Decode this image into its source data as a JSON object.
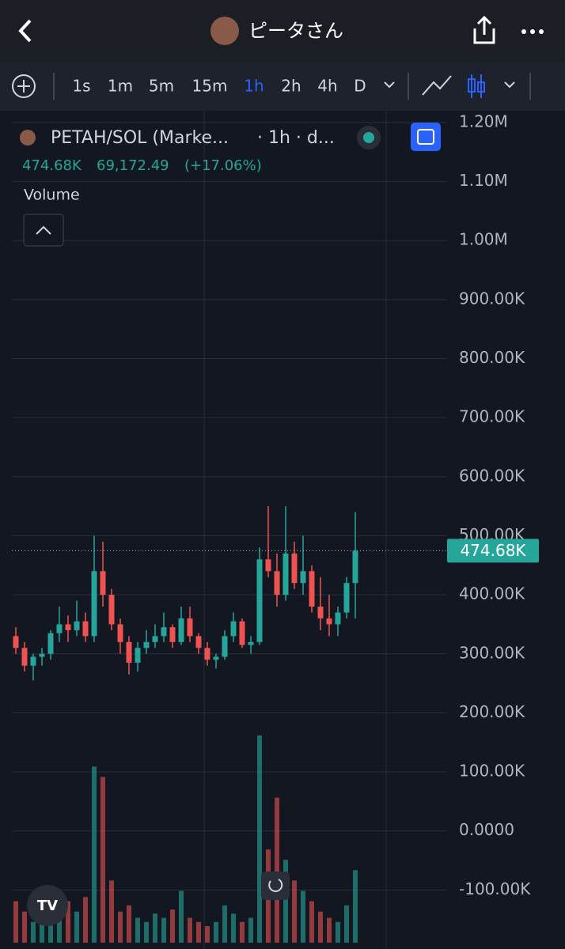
{
  "header": {
    "title": "ピータさん"
  },
  "toolbar": {
    "intervals": [
      "1s",
      "1m",
      "5m",
      "15m",
      "1h",
      "2h",
      "4h",
      "D"
    ],
    "active": 4
  },
  "chart_data": {
    "type": "candlestick",
    "title": "PETAH/SOL (Marke...",
    "subtitle": "· 1h · d...",
    "legend": {
      "price": "474.68K",
      "change": "69,172.49",
      "change_pct": "(+17.06%)"
    },
    "last_label": "474.68K",
    "up_color": "#26a69a",
    "down_color": "#ef5350",
    "ylim": [
      -200000,
      1220000
    ],
    "yticks": [
      {
        "value": 1200000,
        "label": "1.20M"
      },
      {
        "value": 1100000,
        "label": "1.10M"
      },
      {
        "value": 1000000,
        "label": "1.00M"
      },
      {
        "value": 900000,
        "label": "900.00K"
      },
      {
        "value": 800000,
        "label": "800.00K"
      },
      {
        "value": 700000,
        "label": "700.00K"
      },
      {
        "value": 600000,
        "label": "600.00K"
      },
      {
        "value": 500000,
        "label": "500.00K"
      },
      {
        "value": 400000,
        "label": "400.00K"
      },
      {
        "value": 300000,
        "label": "300.00K"
      },
      {
        "value": 200000,
        "label": "200.00K"
      },
      {
        "value": 100000,
        "label": "100.00K"
      },
      {
        "value": 0,
        "label": "0.0000"
      },
      {
        "value": -100000,
        "label": "-100.00K"
      }
    ],
    "series": [
      {
        "name": "PETAH/SOL",
        "open": [
          330000,
          310000,
          280000,
          295000,
          300000,
          335000,
          350000,
          340000,
          355000,
          330000,
          440000,
          400000,
          350000,
          320000,
          285000,
          310000,
          320000,
          330000,
          345000,
          320000,
          360000,
          330000,
          310000,
          290000,
          295000,
          330000,
          355000,
          315000,
          320000,
          460000,
          440000,
          400000,
          470000,
          420000,
          440000,
          380000,
          360000,
          350000,
          370000,
          420000
        ],
        "high": [
          345000,
          320000,
          300000,
          310000,
          340000,
          380000,
          365000,
          390000,
          370000,
          500000,
          490000,
          410000,
          360000,
          330000,
          320000,
          340000,
          350000,
          370000,
          350000,
          380000,
          380000,
          335000,
          320000,
          300000,
          340000,
          370000,
          360000,
          330000,
          480000,
          550000,
          470000,
          550000,
          490000,
          500000,
          450000,
          430000,
          400000,
          380000,
          430000,
          540000
        ],
        "low": [
          300000,
          270000,
          255000,
          280000,
          290000,
          320000,
          320000,
          330000,
          320000,
          320000,
          380000,
          340000,
          300000,
          265000,
          270000,
          300000,
          310000,
          320000,
          310000,
          315000,
          320000,
          300000,
          280000,
          275000,
          290000,
          320000,
          310000,
          300000,
          315000,
          430000,
          380000,
          390000,
          410000,
          400000,
          370000,
          340000,
          330000,
          330000,
          360000,
          360000
        ],
        "close": [
          310000,
          280000,
          295000,
          300000,
          335000,
          350000,
          340000,
          355000,
          330000,
          440000,
          400000,
          350000,
          320000,
          285000,
          310000,
          320000,
          330000,
          345000,
          320000,
          360000,
          330000,
          310000,
          290000,
          295000,
          330000,
          355000,
          315000,
          320000,
          460000,
          440000,
          400000,
          470000,
          420000,
          440000,
          380000,
          360000,
          350000,
          370000,
          420000,
          474680
        ]
      }
    ],
    "volume": {
      "name": "Volume",
      "ylim": [
        0,
        100
      ],
      "values": [
        20,
        15,
        10,
        12,
        25,
        18,
        20,
        15,
        22,
        85,
        80,
        30,
        15,
        18,
        12,
        10,
        14,
        12,
        16,
        25,
        12,
        10,
        8,
        10,
        18,
        14,
        10,
        12,
        100,
        45,
        70,
        40,
        30,
        25,
        20,
        15,
        12,
        10,
        18,
        35
      ]
    }
  }
}
